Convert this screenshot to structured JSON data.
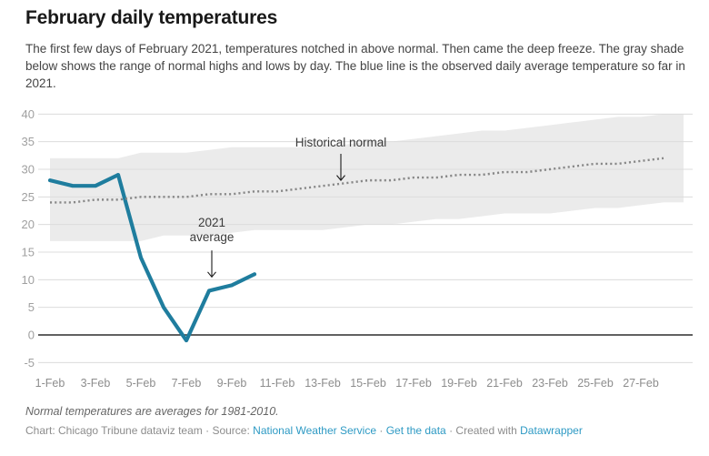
{
  "header": {
    "title": "February daily temperatures",
    "description": "The first few days of February 2021, temperatures notched in above normal. Then came the deep freeze. The gray shade below shows the range of normal highs and lows by day. The blue line is the observed daily average temperature so far in 2021."
  },
  "footer": {
    "note": "Normal temperatures are averages for 1981-2010.",
    "byline": "Chart: Chicago Tribune dataviz team",
    "separator": "·",
    "source_label": "Source:",
    "source_link": "National Weather Service",
    "data_link": "Get the data",
    "credit_prefix": "Created with",
    "credit_link": "Datawrapper"
  },
  "colors": {
    "line_2021": "#1f7d9e",
    "normal_dotted": "#878787",
    "band": "#ebebeb",
    "gridline": "#dcdcdc",
    "zero_line": "#2d2d2d",
    "axis_label_y": "#a0a0a0",
    "axis_label_x": "#8d8d8d",
    "annotation": "#3a3a3a",
    "arrow": "#1a1a1a",
    "link": "#2e9ac4"
  },
  "chart_data": {
    "type": "line",
    "title": "February daily temperatures",
    "xlabel": "",
    "ylabel": "",
    "ylim": [
      -5,
      40
    ],
    "yticks": [
      -5,
      0,
      5,
      10,
      15,
      20,
      25,
      30,
      35,
      40
    ],
    "x_tick_days": [
      1,
      3,
      5,
      7,
      9,
      11,
      13,
      15,
      17,
      19,
      21,
      23,
      25,
      27
    ],
    "x_tick_labels": [
      "1-Feb",
      "3-Feb",
      "5-Feb",
      "7-Feb",
      "9-Feb",
      "11-Feb",
      "13-Feb",
      "15-Feb",
      "17-Feb",
      "19-Feb",
      "21-Feb",
      "23-Feb",
      "25-Feb",
      "27-Feb"
    ],
    "grid": "horizontal-only",
    "legend": "none",
    "band": {
      "name": "Range of normal highs and lows by day",
      "start_day": 1,
      "high": [
        32,
        32,
        32,
        32,
        33,
        33,
        33,
        33.5,
        34,
        34,
        34,
        34,
        34.5,
        34.5,
        35,
        35,
        35.5,
        36,
        36.5,
        37,
        37,
        37.5,
        38,
        38.5,
        39,
        39.5,
        39.5,
        40
      ],
      "low": [
        17,
        17,
        17,
        17,
        17,
        18,
        18,
        18,
        18.5,
        19,
        19,
        19,
        19,
        19.5,
        20,
        20,
        20.5,
        21,
        21,
        21.5,
        22,
        22,
        22,
        22.5,
        23,
        23,
        23.5,
        24
      ]
    },
    "series": [
      {
        "name": "2021 observed daily average",
        "style": "solid",
        "color_key": "line_2021",
        "start_day": 1,
        "values": [
          28,
          27,
          27,
          29,
          14,
          5,
          -1,
          8,
          9,
          11
        ]
      },
      {
        "name": "Historical normal",
        "style": "dotted",
        "color_key": "normal_dotted",
        "start_day": 1,
        "values": [
          24,
          24,
          24.5,
          24.5,
          25,
          25,
          25,
          25.5,
          25.5,
          26,
          26,
          26.5,
          27,
          27.5,
          28,
          28,
          28.5,
          28.5,
          29,
          29,
          29.5,
          29.5,
          30,
          30.5,
          31,
          31,
          31.5,
          32
        ]
      }
    ],
    "annotations": [
      {
        "lines": [
          "Historical normal"
        ],
        "day": 13.8,
        "value": 34.1,
        "arrow": {
          "day": 13.8,
          "from_value": 32.8,
          "to_value": 28.0
        }
      },
      {
        "lines": [
          "2021",
          "average"
        ],
        "day": 8.12,
        "value": 19.6,
        "arrow": {
          "day": 8.12,
          "from_value": 15.3,
          "to_value": 10.5
        }
      }
    ]
  }
}
